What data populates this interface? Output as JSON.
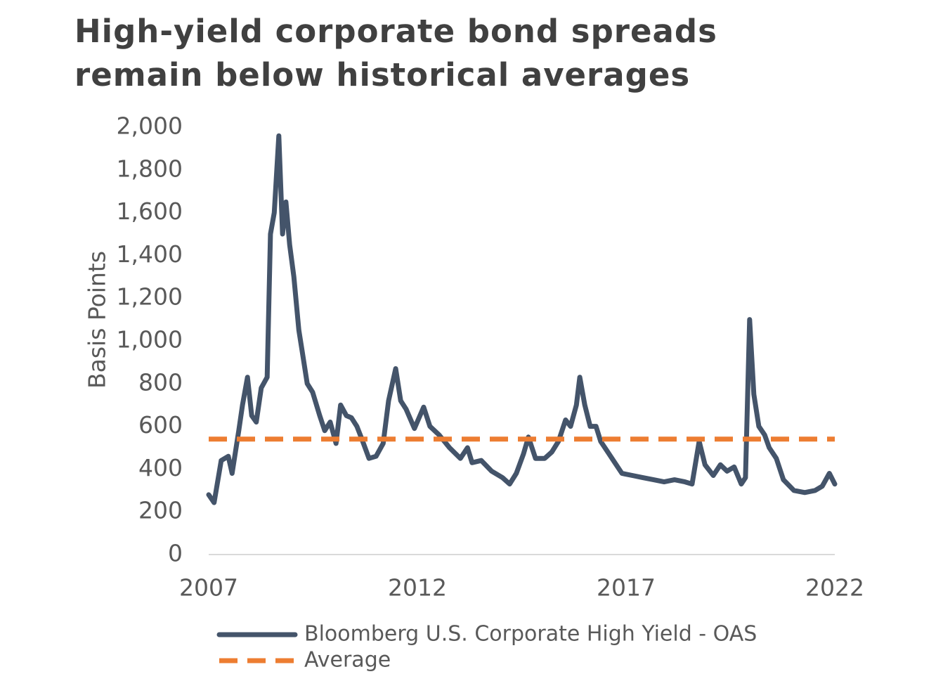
{
  "chart_data": {
    "type": "line",
    "title": "High-yield corporate bond spreads remain below historical averages",
    "ylabel": "Basis Points",
    "xlim": [
      2007,
      2022
    ],
    "xticks": [
      2007,
      2012,
      2017,
      2022
    ],
    "ylim": [
      0,
      2000
    ],
    "yticks": [
      0,
      200,
      400,
      600,
      800,
      {
        "value": 1000,
        "label": "1,000"
      },
      {
        "value": 1200,
        "label": "1,200"
      },
      {
        "value": 1400,
        "label": "1,400"
      },
      {
        "value": 1600,
        "label": "1,600"
      },
      {
        "value": 1800,
        "label": "1,800"
      },
      {
        "value": 2000,
        "label": "2,000"
      }
    ],
    "grid": false,
    "legend": "bottom",
    "series": [
      {
        "name": "Bloomberg U.S. Corporate High Yield - OAS",
        "color": "#44546a",
        "style": "solid",
        "x": [
          2007.0,
          2007.13,
          2007.3,
          2007.47,
          2007.56,
          2007.72,
          2007.81,
          2007.93,
          2008.03,
          2008.14,
          2008.26,
          2008.4,
          2008.48,
          2008.57,
          2008.68,
          2008.77,
          2008.85,
          2008.94,
          2009.04,
          2009.16,
          2009.24,
          2009.36,
          2009.49,
          2009.66,
          2009.78,
          2009.91,
          2010.05,
          2010.16,
          2010.3,
          2010.42,
          2010.55,
          2010.67,
          2010.84,
          2011.01,
          2011.18,
          2011.31,
          2011.48,
          2011.6,
          2011.73,
          2011.93,
          2012.15,
          2012.3,
          2012.52,
          2012.77,
          2013.03,
          2013.2,
          2013.31,
          2013.53,
          2013.78,
          2014.04,
          2014.21,
          2014.37,
          2014.54,
          2014.66,
          2014.83,
          2015.05,
          2015.22,
          2015.38,
          2015.55,
          2015.67,
          2015.81,
          2015.89,
          2016.01,
          2016.14,
          2016.28,
          2016.39,
          2016.56,
          2016.73,
          2016.9,
          2017.15,
          2017.4,
          2017.66,
          2017.91,
          2018.16,
          2018.41,
          2018.58,
          2018.75,
          2018.89,
          2019.09,
          2019.26,
          2019.42,
          2019.59,
          2019.76,
          2019.86,
          2019.96,
          2020.06,
          2020.18,
          2020.32,
          2020.43,
          2020.6,
          2020.77,
          2021.02,
          2021.28,
          2021.53,
          2021.7,
          2021.87,
          2022.0
        ],
        "values": [
          280,
          243,
          440,
          460,
          380,
          580,
          700,
          830,
          650,
          620,
          780,
          830,
          1500,
          1600,
          1960,
          1500,
          1650,
          1450,
          1300,
          1050,
          950,
          800,
          760,
          650,
          580,
          620,
          520,
          700,
          650,
          640,
          600,
          540,
          450,
          460,
          520,
          720,
          870,
          720,
          680,
          590,
          690,
          600,
          560,
          500,
          450,
          500,
          430,
          440,
          390,
          360,
          330,
          380,
          470,
          550,
          450,
          450,
          480,
          530,
          630,
          600,
          700,
          830,
          700,
          600,
          600,
          530,
          480,
          430,
          380,
          370,
          360,
          350,
          340,
          350,
          340,
          330,
          530,
          420,
          370,
          420,
          390,
          410,
          330,
          360,
          1100,
          750,
          600,
          560,
          500,
          450,
          350,
          300,
          290,
          300,
          320,
          380,
          330
        ]
      },
      {
        "name": "Average",
        "color": "#ed7d31",
        "style": "dashed",
        "x": [
          2007,
          2022
        ],
        "values": [
          540,
          540
        ]
      }
    ]
  }
}
